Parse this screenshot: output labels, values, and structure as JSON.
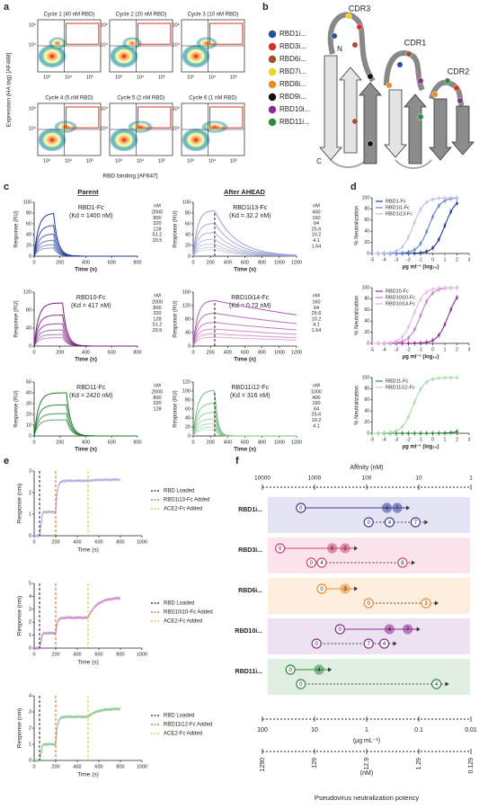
{
  "a": {
    "label": "a",
    "cycles": [
      "Cycle 1 (40 nM RBD)",
      "Cycle 2 (20 nM RBD)",
      "Cycle 3 (10 nM RBD)",
      "Cycle 4 (5 nM RBD)",
      "Cycle 5 (2 nM RBD)",
      "Cycle 6 (1 nM RBD)"
    ],
    "ylabel": "Expression (HA tag) [AF488]",
    "xlabel": "RBD binding [AF647]",
    "yticks": [
      "10⁶",
      "10⁴"
    ],
    "xticks": [
      "10³",
      "10⁴",
      "10⁵"
    ]
  },
  "b": {
    "label": "b",
    "legend": [
      {
        "name": "RBD1i...",
        "color": "#2b4ea2"
      },
      {
        "name": "RBD3i...",
        "color": "#d7302a"
      },
      {
        "name": "RBD6i...",
        "color": "#a0522d"
      },
      {
        "name": "RBD7i...",
        "color": "#f2d21b"
      },
      {
        "name": "RBD8i...",
        "color": "#f08a24"
      },
      {
        "name": "RBD9i...",
        "color": "#111111"
      },
      {
        "name": "RBD10i...",
        "color": "#8b2d8f"
      },
      {
        "name": "RBD11i...",
        "color": "#2e8b3e"
      }
    ],
    "cdr": [
      "CDR3",
      "CDR1",
      "CDR2"
    ],
    "n": "N",
    "c": "C"
  },
  "c": {
    "label": "c",
    "headers": [
      "Parent",
      "After AHEAD"
    ],
    "ylabel": "Response (RU)",
    "xlabel": "Time (s)",
    "unit": "nM",
    "plots": [
      {
        "title": "RBD1-Fc",
        "kd": "(Kd = 1400 nM)",
        "color": "#1f3a96",
        "yticks": [
          0,
          20,
          40,
          60,
          80,
          100
        ],
        "xticks": [
          0,
          200,
          400,
          600,
          800
        ],
        "conc": [
          "2000",
          "800",
          "320",
          "128",
          "51.2",
          "20.5"
        ]
      },
      {
        "title": "RBD1i13-Fc",
        "kd": "(Kd = 32.2 nM)",
        "color": "#9a9fd6",
        "yticks": [
          0,
          20,
          40,
          60,
          80,
          100
        ],
        "xticks": [
          0,
          200,
          400,
          600,
          800,
          1000,
          1200
        ],
        "conc": [
          "400",
          "160",
          "64",
          "25.6",
          "10.2",
          "4.1",
          "1.64"
        ]
      },
      {
        "title": "RBD10-Fc",
        "kd": "(Kd = 417 nM)",
        "color": "#7a1f7e",
        "yticks": [
          0,
          40,
          80,
          120
        ],
        "xticks": [
          0,
          200,
          400,
          600,
          800
        ],
        "conc": [
          "2000",
          "800",
          "320",
          "128",
          "51.2",
          "20.5"
        ]
      },
      {
        "title": "RBD10i14-Fc",
        "kd": "(Kd = 0.72 nM)",
        "color": "#b35bb8",
        "yticks": [
          0,
          40,
          80,
          120,
          160
        ],
        "xticks": [
          0,
          200,
          400,
          600,
          800,
          1000,
          1200
        ],
        "conc": [
          "160",
          "64",
          "25.6",
          "10.2",
          "4.1",
          "1.64"
        ]
      },
      {
        "title": "RBD11-Fc",
        "kd": "(Kd = 2420 nM)",
        "color": "#1f7a2c",
        "yticks": [
          0,
          10,
          20,
          30,
          40,
          50
        ],
        "xticks": [
          0,
          200,
          400,
          600,
          800
        ],
        "conc": [
          "2000",
          "800",
          "320",
          "128"
        ]
      },
      {
        "title": "RBD11i12-Fc",
        "kd": "(Kd = 316 nM)",
        "color": "#7cc284",
        "yticks": [
          0,
          20,
          40,
          60,
          80,
          100,
          120
        ],
        "xticks": [
          0,
          200,
          400,
          600,
          800,
          1000,
          1200
        ],
        "conc": [
          "1000",
          "400",
          "160",
          "64",
          "25.6",
          "10.2",
          "4.1"
        ]
      }
    ]
  },
  "d": {
    "label": "d",
    "ylabel": "% Neutralization",
    "xlabel": "μg ml⁻¹ (log₁₀)",
    "yticks": [
      0,
      20,
      40,
      60,
      80,
      100
    ],
    "xticks": [
      -5,
      -4,
      -3,
      -2,
      -1,
      0,
      1,
      2,
      3
    ],
    "plots": [
      {
        "legend": [
          "RBD1-Fc",
          "RBD1i1-Fc",
          "RBD1i13-Fc"
        ],
        "colors": [
          "#1f3a96",
          "#5b7fd0",
          "#b8c2ea"
        ]
      },
      {
        "legend": [
          "RBD10-Fc",
          "RBD10i10-Fc",
          "RBD10i14-Fc"
        ],
        "colors": [
          "#8b2d8f",
          "#c47cc8",
          "#e3b8e6"
        ]
      },
      {
        "legend": [
          "RBD11-Fc",
          "RBD11i12-Fc"
        ],
        "colors": [
          "#2e8b3e",
          "#a6dba9"
        ]
      }
    ]
  },
  "e": {
    "label": "e",
    "ylabel": "Response (nm)",
    "xlabel": "Time (s)",
    "xticks": [
      0,
      200,
      400,
      600,
      800,
      1000
    ],
    "plots": [
      {
        "yticks": [
          0,
          1,
          2,
          3
        ],
        "legend": [
          "RBD Loaded",
          "RBD1i13-Fc Added",
          "ACE2-Fc Added"
        ],
        "color": "#b3b0e3"
      },
      {
        "yticks": [
          0,
          1,
          2,
          3,
          4,
          5
        ],
        "legend": [
          "RBD Loaded",
          "RBD10i10-Fc Added",
          "ACE2-Fc Added"
        ],
        "color": "#c690c9"
      },
      {
        "yticks": [
          0,
          1,
          2,
          3,
          4
        ],
        "legend": [
          "RBD Loaded",
          "RBD11i12-Fc Added",
          "ACE2-Fc Added"
        ],
        "color": "#8fc995"
      }
    ]
  },
  "f": {
    "label": "f",
    "top_axis": "Affinity (nM)",
    "top_ticks": [
      "10000",
      "1000",
      "100",
      "10",
      "1"
    ],
    "rows": [
      {
        "name": "RBD1i...",
        "color": "#3b3f9a",
        "bg": "#e4e4f4",
        "top": [
          "0",
          "4",
          "7"
        ],
        "bottom": [
          "0",
          "4",
          "7"
        ]
      },
      {
        "name": "RBD3i...",
        "color": "#d6427a",
        "bg": "#fbe4ec",
        "top": [
          "0",
          "8",
          "3"
        ],
        "bottom": [
          "0",
          "4",
          "8"
        ]
      },
      {
        "name": "RBD6i...",
        "color": "#f08a24",
        "bg": "#fdeedd",
        "top": [
          "0",
          "3"
        ],
        "bottom": [
          "0",
          "3"
        ]
      },
      {
        "name": "RBD10i...",
        "color": "#8b2d8f",
        "bg": "#ece2f1",
        "top": [
          "0",
          "4",
          "7"
        ],
        "bottom": [
          "0",
          "7",
          "4"
        ]
      },
      {
        "name": "RBD11i...",
        "color": "#2e8b3e",
        "bg": "#e1eee2",
        "top": [
          "0",
          "4"
        ],
        "bottom": [
          "0",
          "4"
        ]
      }
    ],
    "mass_ticks": [
      "100",
      "10",
      "1",
      "0.1",
      "0.01"
    ],
    "mass_unit": "(μg mL⁻¹)",
    "molar_ticks": [
      "1290",
      "129",
      "12.9",
      "1.29",
      "0.129"
    ],
    "molar_unit": "(nM)",
    "bottom_title": "Pseudovirus neutralization potency"
  }
}
